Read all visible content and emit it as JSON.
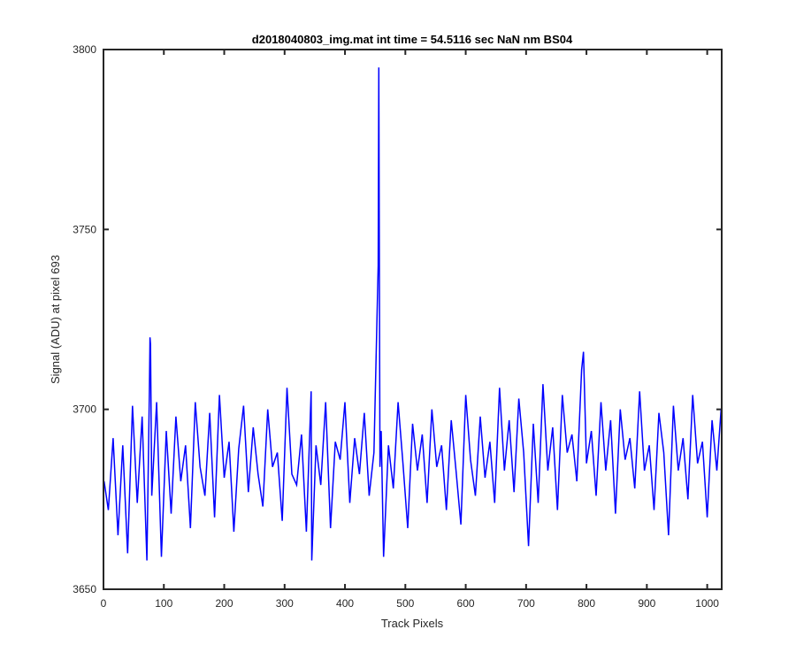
{
  "chart_data": {
    "type": "line",
    "title": "d2018040803_img.mat int time = 54.5116 sec  NaN nm BS04",
    "xlabel": "Track Pixels",
    "ylabel": "Signal (ADU) at pixel 693",
    "xlim": [
      0,
      1024
    ],
    "ylim": [
      3650,
      3800
    ],
    "xticks": [
      0,
      100,
      200,
      300,
      400,
      500,
      600,
      700,
      800,
      900,
      1000
    ],
    "yticks": [
      3650,
      3700,
      3750,
      3800
    ],
    "grid": false,
    "line_color": "#0000ff",
    "series": [
      {
        "x": [
          1,
          8,
          16,
          24,
          32,
          40,
          48,
          56,
          64,
          72,
          76,
          77,
          78,
          80,
          88,
          96,
          104,
          112,
          120,
          128,
          136,
          144,
          152,
          160,
          168,
          176,
          184,
          192,
          200,
          208,
          216,
          224,
          232,
          240,
          248,
          256,
          264,
          272,
          280,
          288,
          296,
          304,
          312,
          320,
          328,
          336,
          344,
          345,
          352,
          360,
          368,
          376,
          384,
          392,
          400,
          408,
          416,
          424,
          432,
          440,
          448,
          455,
          456,
          458,
          460,
          464,
          472,
          480,
          488,
          496,
          504,
          512,
          520,
          528,
          536,
          544,
          552,
          560,
          568,
          576,
          584,
          592,
          600,
          608,
          616,
          624,
          632,
          640,
          648,
          656,
          664,
          672,
          680,
          688,
          696,
          704,
          712,
          720,
          728,
          736,
          744,
          752,
          760,
          768,
          776,
          784,
          792,
          795,
          800,
          808,
          816,
          824,
          832,
          840,
          848,
          856,
          864,
          872,
          880,
          888,
          896,
          904,
          912,
          920,
          928,
          936,
          944,
          952,
          960,
          968,
          976,
          984,
          992,
          1000,
          1008,
          1016,
          1023
        ],
        "y": [
          3680,
          3672,
          3692,
          3665,
          3690,
          3660,
          3701,
          3674,
          3698,
          3658,
          3705,
          3720,
          3718,
          3676,
          3702,
          3659,
          3694,
          3671,
          3698,
          3680,
          3690,
          3667,
          3702,
          3684,
          3676,
          3699,
          3670,
          3704,
          3681,
          3691,
          3666,
          3689,
          3701,
          3677,
          3695,
          3682,
          3673,
          3700,
          3684,
          3688,
          3669,
          3706,
          3682,
          3679,
          3693,
          3666,
          3705,
          3658,
          3690,
          3679,
          3702,
          3667,
          3691,
          3686,
          3702,
          3674,
          3692,
          3682,
          3699,
          3676,
          3688,
          3740,
          3795,
          3684,
          3694,
          3659,
          3690,
          3678,
          3702,
          3685,
          3667,
          3696,
          3683,
          3693,
          3674,
          3700,
          3684,
          3690,
          3672,
          3697,
          3683,
          3668,
          3704,
          3686,
          3676,
          3698,
          3681,
          3691,
          3674,
          3706,
          3683,
          3697,
          3677,
          3703,
          3688,
          3662,
          3696,
          3674,
          3707,
          3683,
          3695,
          3672,
          3704,
          3688,
          3693,
          3680,
          3711,
          3716,
          3685,
          3694,
          3676,
          3702,
          3683,
          3697,
          3671,
          3700,
          3686,
          3692,
          3678,
          3705,
          3683,
          3690,
          3672,
          3699,
          3688,
          3665,
          3701,
          3683,
          3692,
          3675,
          3704,
          3685,
          3691,
          3670,
          3697,
          3683,
          3700
        ]
      }
    ]
  }
}
